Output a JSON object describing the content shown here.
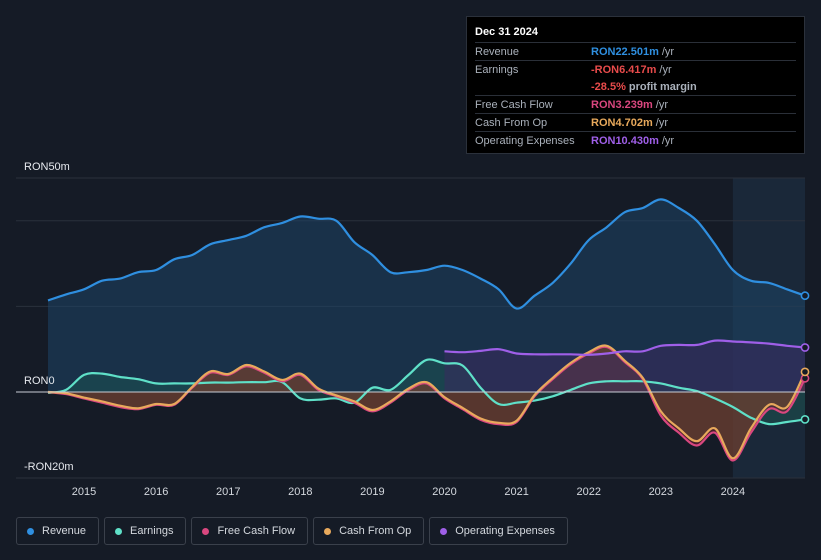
{
  "tooltip": {
    "date": "Dec 31 2024",
    "rows": [
      {
        "name": "Revenue",
        "value": "RON22.501m",
        "unit": "/yr",
        "color": "#2f8fe0"
      },
      {
        "name": "Earnings",
        "value": "-RON6.417m",
        "unit": "/yr",
        "color": "#e84b4b"
      },
      {
        "name": "",
        "value": "-28.5%",
        "unit": "profit margin",
        "color": "#e84b4b"
      },
      {
        "name": "Free Cash Flow",
        "value": "RON3.239m",
        "unit": "/yr",
        "color": "#d9477f"
      },
      {
        "name": "Cash From Op",
        "value": "RON4.702m",
        "unit": "/yr",
        "color": "#e8a95c"
      },
      {
        "name": "Operating Expenses",
        "value": "RON10.430m",
        "unit": "/yr",
        "color": "#9f5fe8"
      }
    ]
  },
  "legend": [
    {
      "label": "Revenue",
      "color": "#2f8fe0"
    },
    {
      "label": "Earnings",
      "color": "#5fe0c8"
    },
    {
      "label": "Free Cash Flow",
      "color": "#d9477f"
    },
    {
      "label": "Cash From Op",
      "color": "#e8a95c"
    },
    {
      "label": "Operating Expenses",
      "color": "#9f5fe8"
    }
  ],
  "chart_data": {
    "type": "area",
    "title": "",
    "currency_unit": "RON millions",
    "y_labels": {
      "top": "RON50m",
      "zero": "RON0",
      "bottom": "-RON20m"
    },
    "ylim": [
      -20,
      50
    ],
    "xlim": [
      2014.5,
      2025.0
    ],
    "x_ticks": [
      "2015",
      "2016",
      "2017",
      "2018",
      "2019",
      "2020",
      "2021",
      "2022",
      "2023",
      "2024"
    ],
    "highlight_from": 2024.0,
    "series": [
      {
        "name": "Revenue",
        "color": "#2f8fe0",
        "fill": "#1e4466",
        "points": [
          [
            2014.5,
            21.4
          ],
          [
            2014.75,
            22.8
          ],
          [
            2015.0,
            24.0
          ],
          [
            2015.25,
            26.0
          ],
          [
            2015.5,
            26.5
          ],
          [
            2015.75,
            28.0
          ],
          [
            2016.0,
            28.5
          ],
          [
            2016.25,
            31.0
          ],
          [
            2016.5,
            32.0
          ],
          [
            2016.75,
            34.5
          ],
          [
            2017.0,
            35.5
          ],
          [
            2017.25,
            36.5
          ],
          [
            2017.5,
            38.5
          ],
          [
            2017.75,
            39.5
          ],
          [
            2018.0,
            41.0
          ],
          [
            2018.25,
            40.5
          ],
          [
            2018.5,
            40.0
          ],
          [
            2018.75,
            35.0
          ],
          [
            2019.0,
            32.0
          ],
          [
            2019.25,
            28.0
          ],
          [
            2019.5,
            28.0
          ],
          [
            2019.75,
            28.5
          ],
          [
            2020.0,
            29.5
          ],
          [
            2020.25,
            28.5
          ],
          [
            2020.5,
            26.5
          ],
          [
            2020.75,
            24.0
          ],
          [
            2021.0,
            19.5
          ],
          [
            2021.25,
            22.5
          ],
          [
            2021.5,
            25.5
          ],
          [
            2021.75,
            30.0
          ],
          [
            2022.0,
            35.5
          ],
          [
            2022.25,
            38.5
          ],
          [
            2022.5,
            42.0
          ],
          [
            2022.75,
            43.0
          ],
          [
            2023.0,
            45.0
          ],
          [
            2023.25,
            43.0
          ],
          [
            2023.5,
            40.0
          ],
          [
            2023.75,
            34.5
          ],
          [
            2024.0,
            28.5
          ],
          [
            2024.25,
            26.0
          ],
          [
            2024.5,
            25.5
          ],
          [
            2024.75,
            24.0
          ],
          [
            2025.0,
            22.5
          ]
        ]
      },
      {
        "name": "Earnings",
        "color": "#5fe0c8",
        "fill": "#1d5a55",
        "points": [
          [
            2014.5,
            -0.2
          ],
          [
            2014.75,
            0.5
          ],
          [
            2015.0,
            4.0
          ],
          [
            2015.25,
            4.3
          ],
          [
            2015.5,
            3.5
          ],
          [
            2015.75,
            3.0
          ],
          [
            2016.0,
            2.0
          ],
          [
            2016.25,
            2.0
          ],
          [
            2016.5,
            2.0
          ],
          [
            2016.75,
            2.2
          ],
          [
            2017.0,
            2.2
          ],
          [
            2017.25,
            2.3
          ],
          [
            2017.5,
            2.3
          ],
          [
            2017.75,
            2.3
          ],
          [
            2018.0,
            -1.5
          ],
          [
            2018.25,
            -1.8
          ],
          [
            2018.5,
            -1.5
          ],
          [
            2018.75,
            -2.5
          ],
          [
            2019.0,
            1.0
          ],
          [
            2019.25,
            0.5
          ],
          [
            2019.5,
            4.0
          ],
          [
            2019.75,
            7.5
          ],
          [
            2020.0,
            6.7
          ],
          [
            2020.25,
            6.2
          ],
          [
            2020.5,
            1.0
          ],
          [
            2020.75,
            -2.8
          ],
          [
            2021.0,
            -2.5
          ],
          [
            2021.25,
            -2.0
          ],
          [
            2021.5,
            -1.0
          ],
          [
            2021.75,
            0.5
          ],
          [
            2022.0,
            2.0
          ],
          [
            2022.25,
            2.5
          ],
          [
            2022.5,
            2.5
          ],
          [
            2022.75,
            2.5
          ],
          [
            2023.0,
            2.0
          ],
          [
            2023.25,
            1.0
          ],
          [
            2023.5,
            0.2
          ],
          [
            2023.75,
            -1.5
          ],
          [
            2024.0,
            -3.5
          ],
          [
            2024.25,
            -6.0
          ],
          [
            2024.5,
            -7.5
          ],
          [
            2024.75,
            -7.0
          ],
          [
            2025.0,
            -6.4
          ]
        ]
      },
      {
        "name": "Free Cash Flow",
        "color": "#d9477f",
        "fill": "#6a2230",
        "points": [
          [
            2014.5,
            0.0
          ],
          [
            2014.75,
            -0.5
          ],
          [
            2015.0,
            -1.5
          ],
          [
            2015.25,
            -2.5
          ],
          [
            2015.5,
            -3.5
          ],
          [
            2015.75,
            -4.0
          ],
          [
            2016.0,
            -3.0
          ],
          [
            2016.25,
            -3.0
          ],
          [
            2016.5,
            1.0
          ],
          [
            2016.75,
            4.5
          ],
          [
            2017.0,
            4.0
          ],
          [
            2017.25,
            6.0
          ],
          [
            2017.5,
            4.5
          ],
          [
            2017.75,
            2.5
          ],
          [
            2018.0,
            4.0
          ],
          [
            2018.25,
            0.5
          ],
          [
            2018.5,
            -1.0
          ],
          [
            2018.75,
            -2.5
          ],
          [
            2019.0,
            -4.5
          ],
          [
            2019.25,
            -2.5
          ],
          [
            2019.5,
            0.5
          ],
          [
            2019.75,
            2.0
          ],
          [
            2020.0,
            -1.5
          ],
          [
            2020.25,
            -4.0
          ],
          [
            2020.5,
            -6.5
          ],
          [
            2020.75,
            -7.5
          ],
          [
            2021.0,
            -7.0
          ],
          [
            2021.25,
            -1.0
          ],
          [
            2021.5,
            3.0
          ],
          [
            2021.75,
            6.5
          ],
          [
            2022.0,
            9.0
          ],
          [
            2022.25,
            10.5
          ],
          [
            2022.5,
            7.0
          ],
          [
            2022.75,
            3.0
          ],
          [
            2023.0,
            -5.5
          ],
          [
            2023.25,
            -9.5
          ],
          [
            2023.5,
            -12.5
          ],
          [
            2023.75,
            -9.5
          ],
          [
            2024.0,
            -16.0
          ],
          [
            2024.25,
            -9.5
          ],
          [
            2024.5,
            -4.0
          ],
          [
            2024.75,
            -4.5
          ],
          [
            2025.0,
            3.2
          ]
        ]
      },
      {
        "name": "Cash From Op",
        "color": "#e8a95c",
        "fill": "#6b5530",
        "points": [
          [
            2014.5,
            0.0
          ],
          [
            2014.75,
            -0.3
          ],
          [
            2015.0,
            -1.3
          ],
          [
            2015.25,
            -2.2
          ],
          [
            2015.5,
            -3.2
          ],
          [
            2015.75,
            -3.8
          ],
          [
            2016.0,
            -2.8
          ],
          [
            2016.25,
            -2.8
          ],
          [
            2016.5,
            1.2
          ],
          [
            2016.75,
            4.8
          ],
          [
            2017.0,
            4.2
          ],
          [
            2017.25,
            6.3
          ],
          [
            2017.5,
            4.8
          ],
          [
            2017.75,
            2.8
          ],
          [
            2018.0,
            4.3
          ],
          [
            2018.25,
            0.8
          ],
          [
            2018.5,
            -0.8
          ],
          [
            2018.75,
            -2.2
          ],
          [
            2019.0,
            -4.2
          ],
          [
            2019.25,
            -2.2
          ],
          [
            2019.5,
            0.8
          ],
          [
            2019.75,
            2.3
          ],
          [
            2020.0,
            -1.2
          ],
          [
            2020.25,
            -3.7
          ],
          [
            2020.5,
            -6.2
          ],
          [
            2020.75,
            -7.2
          ],
          [
            2021.0,
            -6.7
          ],
          [
            2021.25,
            -0.7
          ],
          [
            2021.5,
            3.3
          ],
          [
            2021.75,
            6.8
          ],
          [
            2022.0,
            9.3
          ],
          [
            2022.25,
            10.8
          ],
          [
            2022.5,
            7.3
          ],
          [
            2022.75,
            3.3
          ],
          [
            2023.0,
            -4.5
          ],
          [
            2023.25,
            -8.5
          ],
          [
            2023.5,
            -11.5
          ],
          [
            2023.75,
            -8.5
          ],
          [
            2024.0,
            -15.5
          ],
          [
            2024.25,
            -8.5
          ],
          [
            2024.5,
            -3.0
          ],
          [
            2024.75,
            -3.5
          ],
          [
            2025.0,
            4.7
          ]
        ]
      },
      {
        "name": "Operating Expenses",
        "color": "#9f5fe8",
        "fill": "#3a2a5e",
        "points": [
          [
            2020.0,
            9.5
          ],
          [
            2020.25,
            9.3
          ],
          [
            2020.5,
            9.6
          ],
          [
            2020.75,
            10.0
          ],
          [
            2021.0,
            9.0
          ],
          [
            2021.25,
            8.8
          ],
          [
            2021.5,
            8.8
          ],
          [
            2021.75,
            8.8
          ],
          [
            2022.0,
            8.7
          ],
          [
            2022.25,
            9.0
          ],
          [
            2022.5,
            9.5
          ],
          [
            2022.75,
            9.5
          ],
          [
            2023.0,
            10.8
          ],
          [
            2023.25,
            11.0
          ],
          [
            2023.5,
            11.0
          ],
          [
            2023.75,
            12.0
          ],
          [
            2024.0,
            11.8
          ],
          [
            2024.25,
            11.6
          ],
          [
            2024.5,
            11.3
          ],
          [
            2024.75,
            10.8
          ],
          [
            2025.0,
            10.4
          ]
        ]
      }
    ]
  }
}
